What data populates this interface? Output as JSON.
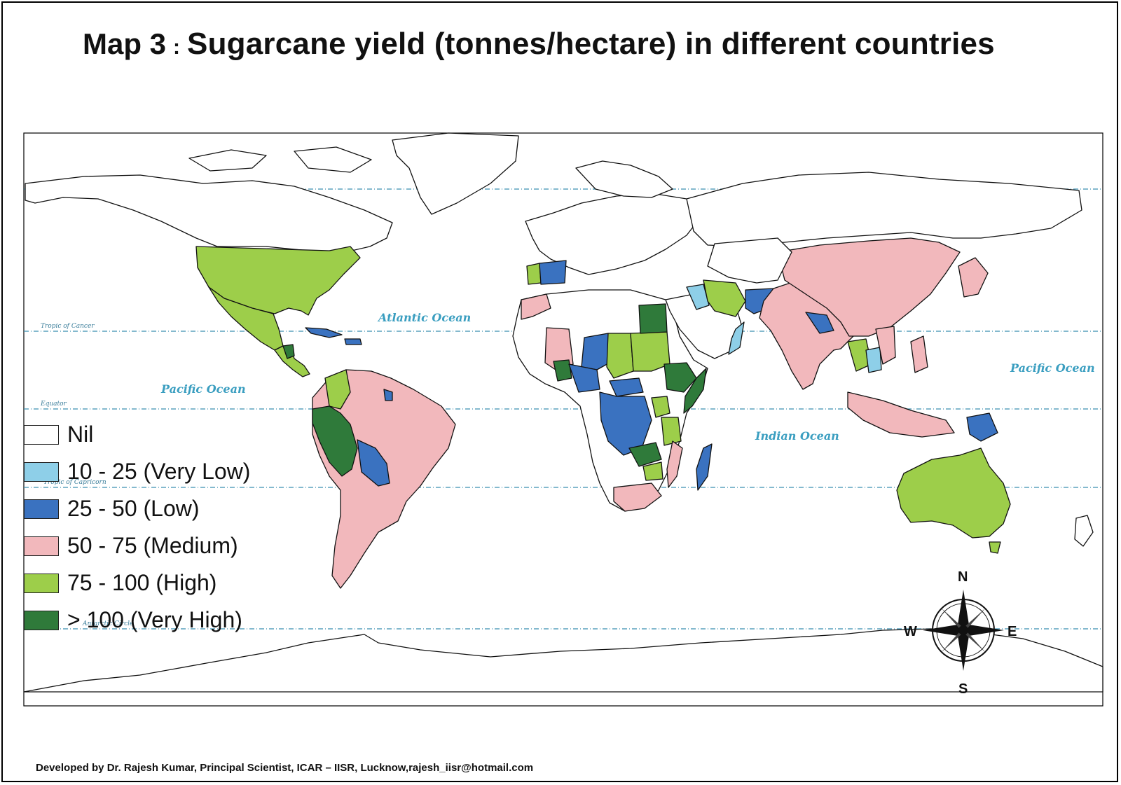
{
  "title": {
    "map_number": "Map 3",
    "separator": ":",
    "text": "Sugarcane yield (tonnes/hectare) in  different countries"
  },
  "legend": [
    {
      "label": "Nil",
      "color": "#ffffff"
    },
    {
      "label": "10 - 25 (Very Low)",
      "color": "#8ecfe8"
    },
    {
      "label": "25 - 50 (Low)",
      "color": "#3a72c0"
    },
    {
      "label": "50 - 75 (Medium)",
      "color": "#f2b8bc"
    },
    {
      "label": "75 - 100 (High)",
      "color": "#9dce4a"
    },
    {
      "label": "> 100 (Very High)",
      "color": "#2f7a3a"
    }
  ],
  "oceans": {
    "atlantic": "Atlantic Ocean",
    "pacific_west": "Pacific Ocean",
    "pacific_east": "Pacific Ocean",
    "indian": "Indian Ocean"
  },
  "latitude_lines": {
    "cancer": "Tropic of Cancer",
    "equator": "Equator",
    "capricorn": "Tropic of Capricorn",
    "antarctic": "Antarctic Circle"
  },
  "compass": {
    "n": "N",
    "s": "S",
    "e": "E",
    "w": "W"
  },
  "credit": "Developed by Dr. Rajesh Kumar, Principal Scientist, ICAR – IISR, Lucknow,rajesh_iisr@hotmail.com"
}
